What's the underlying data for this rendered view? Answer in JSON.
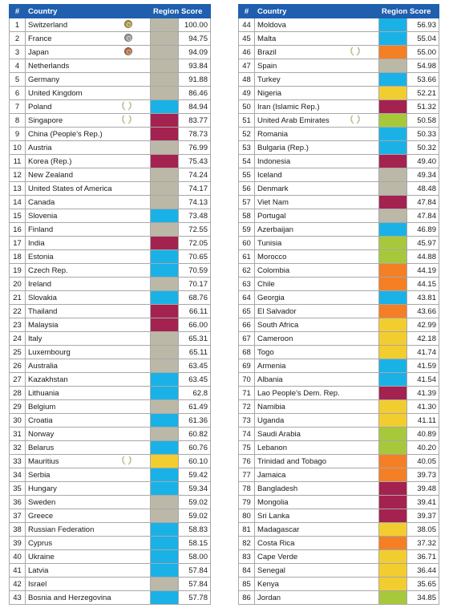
{
  "header": {
    "rank": "#",
    "country": "Country",
    "region": "Region",
    "score": "Score"
  },
  "colors": {
    "gray": "#bbb8a8",
    "blue": "#1ab2e6",
    "maroon": "#a32250",
    "yellow": "#f2cd30",
    "orange": "#f47f24",
    "green": "#a8c83c",
    "header_bg": "#1f5fae"
  },
  "left_rows": [
    {
      "rank": "1",
      "country": "Switzerland",
      "region": "gray",
      "score": "100.00",
      "icon": "gold-medal-icon"
    },
    {
      "rank": "2",
      "country": "France",
      "region": "gray",
      "score": "94.75",
      "icon": "silver-medal-icon"
    },
    {
      "rank": "3",
      "country": "Japan",
      "region": "gray",
      "score": "94.09",
      "icon": "bronze-medal-icon"
    },
    {
      "rank": "4",
      "country": "Netherlands",
      "region": "gray",
      "score": "93.84"
    },
    {
      "rank": "5",
      "country": "Germany",
      "region": "gray",
      "score": "91.88"
    },
    {
      "rank": "6",
      "country": "United Kingdom",
      "region": "gray",
      "score": "86.46"
    },
    {
      "rank": "7",
      "country": "Poland",
      "region": "blue",
      "score": "84.94",
      "icon": "laurel-icon"
    },
    {
      "rank": "8",
      "country": "Singapore",
      "region": "maroon",
      "score": "83.77",
      "icon": "laurel-icon"
    },
    {
      "rank": "9",
      "country": "China (People's Rep.)",
      "region": "maroon",
      "score": "78.73"
    },
    {
      "rank": "10",
      "country": "Austria",
      "region": "gray",
      "score": "76.99"
    },
    {
      "rank": "11",
      "country": "Korea (Rep.)",
      "region": "maroon",
      "score": "75.43"
    },
    {
      "rank": "12",
      "country": "New Zealand",
      "region": "gray",
      "score": "74.24"
    },
    {
      "rank": "13",
      "country": "United States of America",
      "region": "gray",
      "score": "74.17"
    },
    {
      "rank": "14",
      "country": "Canada",
      "region": "gray",
      "score": "74.13"
    },
    {
      "rank": "15",
      "country": "Slovenia",
      "region": "blue",
      "score": "73.48"
    },
    {
      "rank": "16",
      "country": "Finland",
      "region": "gray",
      "score": "72.55"
    },
    {
      "rank": "17",
      "country": "India",
      "region": "maroon",
      "score": "72.05"
    },
    {
      "rank": "18",
      "country": "Estonia",
      "region": "blue",
      "score": "70.65"
    },
    {
      "rank": "19",
      "country": "Czech Rep.",
      "region": "blue",
      "score": "70.59"
    },
    {
      "rank": "20",
      "country": "Ireland",
      "region": "gray",
      "score": "70.17"
    },
    {
      "rank": "21",
      "country": "Slovakia",
      "region": "blue",
      "score": "68.76"
    },
    {
      "rank": "22",
      "country": "Thailand",
      "region": "maroon",
      "score": "66.11"
    },
    {
      "rank": "23",
      "country": "Malaysia",
      "region": "maroon",
      "score": "66.00"
    },
    {
      "rank": "24",
      "country": "Italy",
      "region": "gray",
      "score": "65.31"
    },
    {
      "rank": "25",
      "country": "Luxembourg",
      "region": "gray",
      "score": "65.11"
    },
    {
      "rank": "26",
      "country": "Australia",
      "region": "gray",
      "score": "63.45"
    },
    {
      "rank": "27",
      "country": "Kazakhstan",
      "region": "blue",
      "score": "63.45"
    },
    {
      "rank": "28",
      "country": "Lithuania",
      "region": "blue",
      "score": "62.8"
    },
    {
      "rank": "29",
      "country": "Belgium",
      "region": "gray",
      "score": "61.49"
    },
    {
      "rank": "30",
      "country": "Croatia",
      "region": "blue",
      "score": "61.36"
    },
    {
      "rank": "31",
      "country": "Norway",
      "region": "gray",
      "score": "60.82"
    },
    {
      "rank": "32",
      "country": "Belarus",
      "region": "blue",
      "score": "60.76"
    },
    {
      "rank": "33",
      "country": "Mauritius",
      "region": "yellow",
      "score": "60.10",
      "icon": "laurel-icon"
    },
    {
      "rank": "34",
      "country": "Serbia",
      "region": "blue",
      "score": "59.42"
    },
    {
      "rank": "35",
      "country": "Hungary",
      "region": "blue",
      "score": "59.34"
    },
    {
      "rank": "36",
      "country": "Sweden",
      "region": "gray",
      "score": "59.02"
    },
    {
      "rank": "37",
      "country": "Greece",
      "region": "gray",
      "score": "59.02"
    },
    {
      "rank": "38",
      "country": "Russian Federation",
      "region": "blue",
      "score": "58.83"
    },
    {
      "rank": "39",
      "country": "Cyprus",
      "region": "blue",
      "score": "58.15"
    },
    {
      "rank": "40",
      "country": "Ukraine",
      "region": "blue",
      "score": "58.00"
    },
    {
      "rank": "41",
      "country": "Latvia",
      "region": "blue",
      "score": "57.84"
    },
    {
      "rank": "42",
      "country": "Israel",
      "region": "gray",
      "score": "57.84"
    },
    {
      "rank": "43",
      "country": "Bosnia and Herzegovina",
      "region": "blue",
      "score": "57.78"
    }
  ],
  "right_rows": [
    {
      "rank": "44",
      "country": "Moldova",
      "region": "blue",
      "score": "56.93"
    },
    {
      "rank": "45",
      "country": "Malta",
      "region": "blue",
      "score": "55.04"
    },
    {
      "rank": "46",
      "country": "Brazil",
      "region": "orange",
      "score": "55.00",
      "icon": "laurel-icon"
    },
    {
      "rank": "47",
      "country": "Spain",
      "region": "gray",
      "score": "54.98"
    },
    {
      "rank": "48",
      "country": "Turkey",
      "region": "blue",
      "score": "53.66"
    },
    {
      "rank": "49",
      "country": "Nigeria",
      "region": "yellow",
      "score": "52.21"
    },
    {
      "rank": "50",
      "country": "Iran (Islamic Rep.)",
      "region": "maroon",
      "score": "51.32"
    },
    {
      "rank": "51",
      "country": "United Arab Emirates",
      "region": "green",
      "score": "50.58",
      "icon": "laurel-icon"
    },
    {
      "rank": "52",
      "country": "Romania",
      "region": "blue",
      "score": "50.33"
    },
    {
      "rank": "53",
      "country": "Bulgaria (Rep.)",
      "region": "blue",
      "score": "50.32"
    },
    {
      "rank": "54",
      "country": "Indonesia",
      "region": "maroon",
      "score": "49.40"
    },
    {
      "rank": "55",
      "country": "Iceland",
      "region": "gray",
      "score": "49.34"
    },
    {
      "rank": "56",
      "country": "Denmark",
      "region": "gray",
      "score": "48.48"
    },
    {
      "rank": "57",
      "country": "Viet Nam",
      "region": "maroon",
      "score": "47.84"
    },
    {
      "rank": "58",
      "country": "Portugal",
      "region": "gray",
      "score": "47.84"
    },
    {
      "rank": "59",
      "country": "Azerbaijan",
      "region": "blue",
      "score": "46.89"
    },
    {
      "rank": "60",
      "country": "Tunisia",
      "region": "green",
      "score": "45.97"
    },
    {
      "rank": "61",
      "country": "Morocco",
      "region": "green",
      "score": "44.88"
    },
    {
      "rank": "62",
      "country": "Colombia",
      "region": "orange",
      "score": "44.19"
    },
    {
      "rank": "63",
      "country": "Chile",
      "region": "orange",
      "score": "44.15"
    },
    {
      "rank": "64",
      "country": "Georgia",
      "region": "blue",
      "score": "43.81"
    },
    {
      "rank": "65",
      "country": "El Salvador",
      "region": "orange",
      "score": "43.66"
    },
    {
      "rank": "66",
      "country": "South Africa",
      "region": "yellow",
      "score": "42.99"
    },
    {
      "rank": "67",
      "country": "Cameroon",
      "region": "yellow",
      "score": "42.18"
    },
    {
      "rank": "68",
      "country": "Togo",
      "region": "yellow",
      "score": "41.74"
    },
    {
      "rank": "69",
      "country": "Armenia",
      "region": "blue",
      "score": "41.59"
    },
    {
      "rank": "70",
      "country": "Albania",
      "region": "blue",
      "score": "41.54"
    },
    {
      "rank": "71",
      "country": "Lao People's Dem. Rep.",
      "region": "maroon",
      "score": "41.39"
    },
    {
      "rank": "72",
      "country": "Namibia",
      "region": "yellow",
      "score": "41.30"
    },
    {
      "rank": "73",
      "country": "Uganda",
      "region": "yellow",
      "score": "41.11"
    },
    {
      "rank": "74",
      "country": "Saudi Arabia",
      "region": "green",
      "score": "40.89"
    },
    {
      "rank": "75",
      "country": "Lebanon",
      "region": "green",
      "score": "40.20"
    },
    {
      "rank": "76",
      "country": "Trinidad and Tobago",
      "region": "orange",
      "score": "40.05"
    },
    {
      "rank": "77",
      "country": "Jamaica",
      "region": "orange",
      "score": "39.73"
    },
    {
      "rank": "78",
      "country": "Bangladesh",
      "region": "maroon",
      "score": "39.48"
    },
    {
      "rank": "79",
      "country": "Mongolia",
      "region": "maroon",
      "score": "39.41"
    },
    {
      "rank": "80",
      "country": "Sri Lanka",
      "region": "maroon",
      "score": "39.37"
    },
    {
      "rank": "81",
      "country": "Madagascar",
      "region": "yellow",
      "score": "38.05"
    },
    {
      "rank": "82",
      "country": "Costa Rica",
      "region": "orange",
      "score": "37.32"
    },
    {
      "rank": "83",
      "country": "Cape Verde",
      "region": "yellow",
      "score": "36.71"
    },
    {
      "rank": "84",
      "country": "Senegal",
      "region": "yellow",
      "score": "36.44"
    },
    {
      "rank": "85",
      "country": "Kenya",
      "region": "yellow",
      "score": "35.65"
    },
    {
      "rank": "86",
      "country": "Jordan",
      "region": "green",
      "score": "34.85"
    }
  ]
}
